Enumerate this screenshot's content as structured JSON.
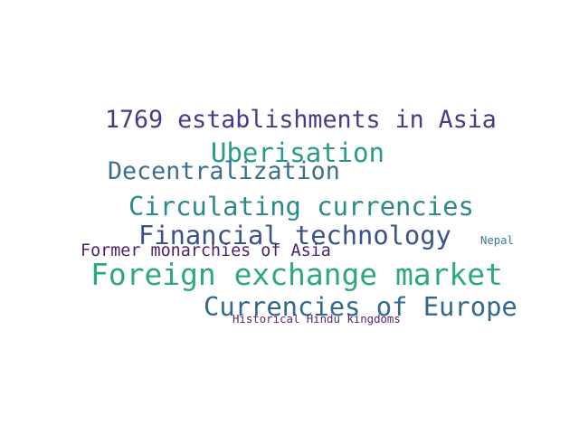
{
  "words": [
    {
      "text": "1769 establishments in Asia",
      "color": "#433e85"
    },
    {
      "text": "Uberisation",
      "color": "#2a9a8a"
    },
    {
      "text": "Decentralization",
      "color": "#3b6f8e"
    },
    {
      "text": "Circulating currencies",
      "color": "#2c8a8c"
    },
    {
      "text": "Financial technology",
      "color": "#3b528b"
    },
    {
      "text": "Former monarchies of Asia",
      "color": "#4d1f6a"
    },
    {
      "text": "Foreign exchange market",
      "color": "#2eaa7a"
    },
    {
      "text": "Currencies of Europe",
      "color": "#31698e"
    },
    {
      "text": "Historical Hindu kingdoms",
      "color": "#5a2572"
    },
    {
      "text": "Nepal",
      "color": "#3d7a99"
    }
  ]
}
